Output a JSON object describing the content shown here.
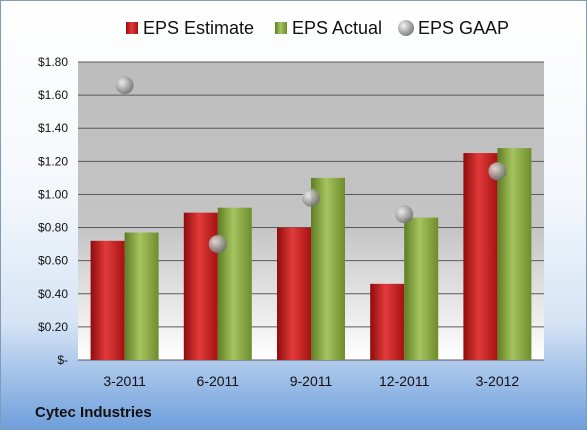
{
  "chart_data": {
    "type": "bar",
    "categories": [
      "3-2011",
      "6-2011",
      "9-2011",
      "12-2011",
      "3-2012"
    ],
    "series": [
      {
        "name": "EPS Estimate",
        "kind": "bar",
        "color": "#cc1f1f",
        "values": [
          0.72,
          0.89,
          0.8,
          0.46,
          1.25
        ]
      },
      {
        "name": "EPS Actual",
        "kind": "bar",
        "color": "#8cb043",
        "values": [
          0.77,
          0.92,
          1.1,
          0.86,
          1.28
        ]
      },
      {
        "name": "EPS GAAP",
        "kind": "marker",
        "color": "#a8a8a8",
        "values": [
          1.66,
          0.7,
          0.98,
          0.88,
          1.14
        ]
      }
    ],
    "y_ticks": [
      "$-",
      "$0.20",
      "$0.40",
      "$0.60",
      "$0.80",
      "$1.00",
      "$1.20",
      "$1.40",
      "$1.60",
      "$1.80"
    ],
    "ylim": [
      0,
      1.8
    ],
    "grid": true,
    "legend_position": "top",
    "footer": "Cytec Industries"
  }
}
